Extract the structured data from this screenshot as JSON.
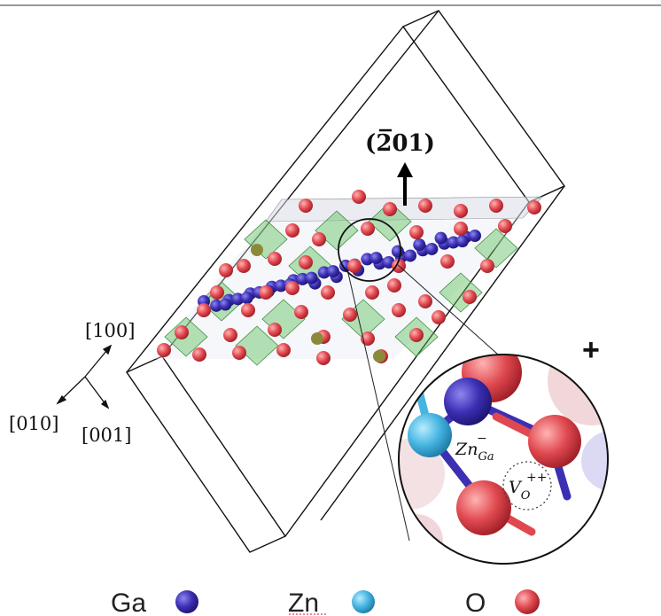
{
  "plane_label": "(̅201)",
  "plane": {
    "bar_digit": "2",
    "rest": "01)",
    "open": "("
  },
  "axes": {
    "a": "[100]",
    "b": "[010]",
    "c": "[001]"
  },
  "charge_sign": "+",
  "zoom": {
    "zn_main": "Zn",
    "zn_sup": "−",
    "zn_sub": "Ga",
    "vo_main": "V",
    "vo_sub": "O",
    "vo_sup": "++"
  },
  "legend": [
    {
      "label": "Ga",
      "color": "#3b2fb3"
    },
    {
      "label": "Zn",
      "color": "#45b4e0"
    },
    {
      "label": "O",
      "color": "#e0484f"
    }
  ],
  "colors": {
    "ga": "#3b2fb3",
    "zn": "#45b4e0",
    "o": "#e0484f",
    "octa": "#5fbf5f",
    "box": "#111111"
  }
}
